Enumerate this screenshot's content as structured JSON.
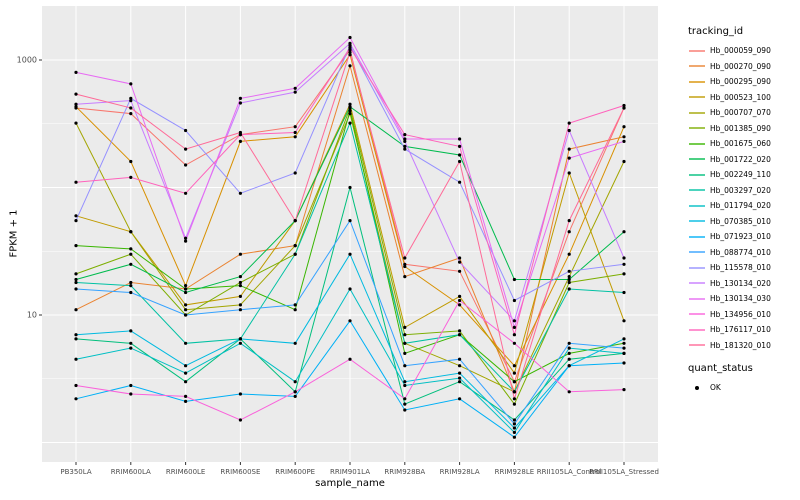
{
  "figure": {
    "bg": "#FFFFFF",
    "panel_bg": "#EBEBEB",
    "grid_color": "#FFFFFF",
    "axis_text_color": "#4D4D4D",
    "tick_color": "#333333",
    "point_color": "#000000"
  },
  "chart_data": {
    "type": "line",
    "title": "",
    "xlabel": "sample_name",
    "ylabel": "FPKM + 1",
    "y_scale": "log10",
    "ylim": [
      0.7,
      2650
    ],
    "y_ticks": [
      10,
      1000
    ],
    "y_tick_labels": [
      "10",
      "1000"
    ],
    "grid": true,
    "legend_position": "right",
    "legend_title": "tracking_id",
    "legend2_title": "quant_status",
    "legend2_items": [
      {
        "label": "OK"
      }
    ],
    "categories": [
      "PB350LA",
      "RRIM600LA",
      "RRIM600LE",
      "RRIM600SE",
      "RRIM600PE",
      "RRIM901LA",
      "RRIM928BA",
      "RRIM928LA",
      "RRIM928LE",
      "RRII105LA_Control",
      "RRII105LA_Stressed"
    ],
    "series": [
      {
        "name": "Hb_000059_090",
        "color": "#F8766D",
        "values": [
          420,
          380,
          150,
          260,
          300,
          1200,
          25,
          22,
          3,
          45,
          420
        ]
      },
      {
        "name": "Hb_000270_090",
        "color": "#EA8331",
        "values": [
          11,
          18,
          16,
          30,
          35,
          900,
          20,
          28,
          2.5,
          200,
          250
        ]
      },
      {
        "name": "Hb_000295_090",
        "color": "#D89000",
        "values": [
          430,
          160,
          17,
          230,
          250,
          1100,
          24,
          12,
          4,
          30,
          300
        ]
      },
      {
        "name": "Hb_000523_100",
        "color": "#C09B00",
        "values": [
          60,
          45,
          12,
          14,
          55,
          450,
          8,
          14,
          3.5,
          130,
          9
        ]
      },
      {
        "name": "Hb_000707_070",
        "color": "#A3A500",
        "values": [
          320,
          45,
          11,
          12,
          35,
          380,
          6,
          4,
          2.5,
          20,
          160
        ]
      },
      {
        "name": "Hb_001385_090",
        "color": "#7CAE00",
        "values": [
          21,
          30,
          10,
          18,
          30,
          420,
          7,
          7.5,
          2,
          18,
          21
        ]
      },
      {
        "name": "Hb_001675_060",
        "color": "#39B600",
        "values": [
          35,
          33,
          16,
          17,
          11,
          400,
          5,
          7,
          3,
          5,
          6
        ]
      },
      {
        "name": "Hb_001722_020",
        "color": "#00BB4E",
        "values": [
          19,
          25,
          15,
          20,
          55,
          430,
          210,
          180,
          19,
          19,
          45
        ]
      },
      {
        "name": "Hb_002249_110",
        "color": "#00BF7D",
        "values": [
          6.5,
          6,
          3,
          6.5,
          2.5,
          100,
          2,
          3,
          1.5,
          4.5,
          5
        ]
      },
      {
        "name": "Hb_003297_020",
        "color": "#00C1A3",
        "values": [
          18,
          17,
          6,
          6.5,
          30,
          320,
          6,
          7,
          2.5,
          16,
          15
        ]
      },
      {
        "name": "Hb_011794_020",
        "color": "#00BFC4",
        "values": [
          4.5,
          5.5,
          3.5,
          6,
          3,
          16,
          2.8,
          3.2,
          1.2,
          5.5,
          5
        ]
      },
      {
        "name": "Hb_070385_010",
        "color": "#00BAE0",
        "values": [
          7,
          7.5,
          4,
          6.5,
          6,
          30,
          3,
          3.5,
          1.3,
          4,
          6.5
        ]
      },
      {
        "name": "Hb_071923_010",
        "color": "#00B0F6",
        "values": [
          2.2,
          2.8,
          2.1,
          2.4,
          2.3,
          9,
          1.8,
          2.2,
          1.1,
          4,
          4.2
        ]
      },
      {
        "name": "Hb_088774_010",
        "color": "#35A2FF",
        "values": [
          16,
          15,
          10,
          11,
          12,
          55,
          4,
          4.5,
          1.4,
          6,
          5.5
        ]
      },
      {
        "name": "Hb_115578_010",
        "color": "#9590FF",
        "values": [
          55,
          500,
          280,
          90,
          130,
          1300,
          200,
          110,
          13,
          22,
          25
        ]
      },
      {
        "name": "Hb_130134_020",
        "color": "#C77CFF",
        "values": [
          450,
          480,
          40,
          460,
          560,
          1350,
          230,
          26,
          9,
          280,
          28
        ]
      },
      {
        "name": "Hb_130134_030",
        "color": "#E76BF3",
        "values": [
          800,
          650,
          38,
          500,
          600,
          1500,
          240,
          240,
          8,
          170,
          230
        ]
      },
      {
        "name": "Hb_134956_010",
        "color": "#FA62DB",
        "values": [
          2.8,
          2.4,
          2.3,
          1.5,
          2.5,
          4.5,
          2.2,
          13,
          6,
          2.5,
          2.6
        ]
      },
      {
        "name": "Hb_176117_010",
        "color": "#FF62BC",
        "values": [
          110,
          120,
          90,
          260,
          270,
          1250,
          260,
          210,
          7,
          320,
          440
        ]
      },
      {
        "name": "Hb_181320_010",
        "color": "#FF6A98",
        "values": [
          540,
          420,
          200,
          270,
          55,
          1150,
          28,
          160,
          2.2,
          55,
          420
        ]
      }
    ]
  }
}
